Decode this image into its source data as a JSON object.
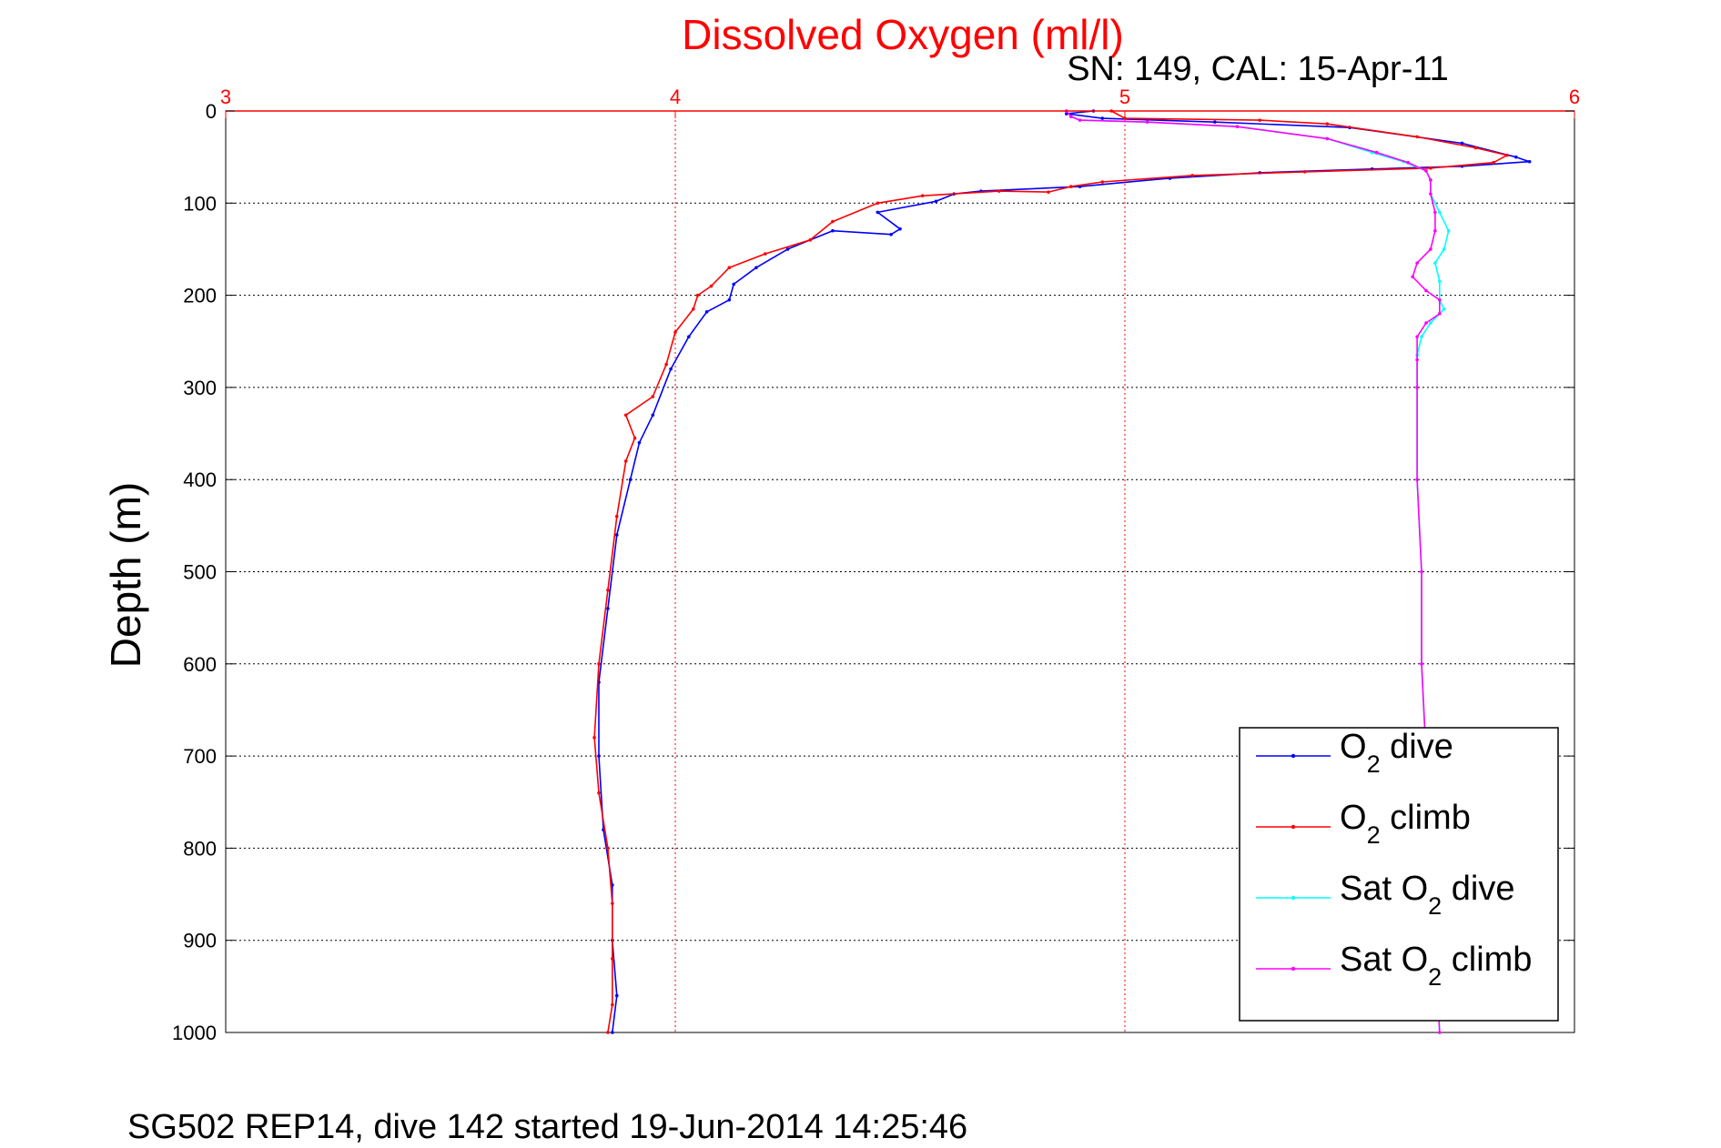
{
  "chart_data": {
    "type": "line",
    "title": "Dissolved Oxygen (ml/l)",
    "subtitle": "SN: 149, CAL: 15-Apr-11",
    "footer": "SG502 REP14, dive 142 started 19-Jun-2014 14:25:46",
    "xlabel": "",
    "ylabel": "Depth (m)",
    "xlim": [
      3,
      6
    ],
    "ylim": [
      0,
      1000
    ],
    "y_reversed": true,
    "x_axis_position": "top",
    "x_ticks": [
      "3",
      "4",
      "5",
      "6"
    ],
    "y_ticks": [
      "0",
      "100",
      "200",
      "300",
      "400",
      "500",
      "600",
      "700",
      "800",
      "900",
      "1000"
    ],
    "grid": true,
    "legend_position": "bottom-right",
    "colors": {
      "title": "#ff0000",
      "x_axis": "#ff0000",
      "grid_x": "#ff0000",
      "grid_y": "#000000"
    },
    "series": [
      {
        "name": "O2 dive",
        "legend_main": "O",
        "legend_sub": "2",
        "legend_rest": " dive",
        "color": "#0000ff",
        "points": [
          [
            4.93,
            0
          ],
          [
            4.87,
            3
          ],
          [
            4.95,
            8
          ],
          [
            5.2,
            12
          ],
          [
            5.5,
            18
          ],
          [
            5.75,
            35
          ],
          [
            5.87,
            50
          ],
          [
            5.9,
            55
          ],
          [
            5.75,
            60
          ],
          [
            5.55,
            63
          ],
          [
            5.3,
            67
          ],
          [
            5.1,
            73
          ],
          [
            4.9,
            82
          ],
          [
            4.68,
            87
          ],
          [
            4.62,
            90
          ],
          [
            4.58,
            98
          ],
          [
            4.45,
            110
          ],
          [
            4.5,
            128
          ],
          [
            4.48,
            134
          ],
          [
            4.35,
            130
          ],
          [
            4.25,
            150
          ],
          [
            4.18,
            170
          ],
          [
            4.13,
            188
          ],
          [
            4.12,
            205
          ],
          [
            4.07,
            218
          ],
          [
            4.03,
            245
          ],
          [
            3.99,
            280
          ],
          [
            3.95,
            330
          ],
          [
            3.92,
            360
          ],
          [
            3.9,
            400
          ],
          [
            3.87,
            460
          ],
          [
            3.85,
            540
          ],
          [
            3.83,
            620
          ],
          [
            3.83,
            700
          ],
          [
            3.84,
            780
          ],
          [
            3.86,
            840
          ],
          [
            3.86,
            900
          ],
          [
            3.87,
            960
          ],
          [
            3.86,
            1000
          ]
        ]
      },
      {
        "name": "O2 climb",
        "legend_main": "O",
        "legend_sub": "2",
        "legend_rest": " climb",
        "color": "#ff0000",
        "points": [
          [
            4.97,
            0
          ],
          [
            5.0,
            8
          ],
          [
            5.3,
            10
          ],
          [
            5.45,
            14
          ],
          [
            5.65,
            28
          ],
          [
            5.78,
            40
          ],
          [
            5.85,
            48
          ],
          [
            5.82,
            56
          ],
          [
            5.68,
            62
          ],
          [
            5.4,
            66
          ],
          [
            5.15,
            70
          ],
          [
            4.95,
            77
          ],
          [
            4.88,
            82
          ],
          [
            4.83,
            88
          ],
          [
            4.72,
            87
          ],
          [
            4.55,
            92
          ],
          [
            4.45,
            100
          ],
          [
            4.35,
            120
          ],
          [
            4.3,
            140
          ],
          [
            4.2,
            155
          ],
          [
            4.12,
            170
          ],
          [
            4.08,
            190
          ],
          [
            4.05,
            200
          ],
          [
            4.04,
            215
          ],
          [
            4.0,
            240
          ],
          [
            3.98,
            275
          ],
          [
            3.95,
            310
          ],
          [
            3.89,
            330
          ],
          [
            3.91,
            355
          ],
          [
            3.89,
            380
          ],
          [
            3.87,
            440
          ],
          [
            3.85,
            520
          ],
          [
            3.83,
            600
          ],
          [
            3.82,
            680
          ],
          [
            3.83,
            740
          ],
          [
            3.85,
            800
          ],
          [
            3.86,
            860
          ],
          [
            3.86,
            920
          ],
          [
            3.86,
            970
          ],
          [
            3.85,
            1000
          ]
        ]
      },
      {
        "name": "Sat O2 dive",
        "legend_main": "Sat O",
        "legend_sub": "2",
        "legend_rest": " dive",
        "color": "#00ffff",
        "points": [
          [
            4.87,
            0
          ],
          [
            4.88,
            6
          ],
          [
            4.9,
            10
          ],
          [
            5.05,
            12
          ],
          [
            5.25,
            17
          ],
          [
            5.45,
            30
          ],
          [
            5.55,
            45
          ],
          [
            5.62,
            55
          ],
          [
            5.67,
            65
          ],
          [
            5.68,
            75
          ],
          [
            5.68,
            90
          ],
          [
            5.7,
            110
          ],
          [
            5.72,
            130
          ],
          [
            5.71,
            150
          ],
          [
            5.69,
            165
          ],
          [
            5.7,
            185
          ],
          [
            5.7,
            205
          ],
          [
            5.71,
            215
          ],
          [
            5.68,
            230
          ],
          [
            5.66,
            245
          ],
          [
            5.65,
            265
          ],
          [
            5.65,
            300
          ],
          [
            5.65,
            400
          ],
          [
            5.66,
            500
          ],
          [
            5.66,
            600
          ],
          [
            5.67,
            700
          ],
          [
            5.68,
            800
          ],
          [
            5.69,
            900
          ],
          [
            5.7,
            1000
          ]
        ]
      },
      {
        "name": "Sat O2 climb",
        "legend_main": "Sat O",
        "legend_sub": "2",
        "legend_rest": " climb",
        "color": "#ff00ff",
        "points": [
          [
            4.87,
            0
          ],
          [
            4.88,
            6
          ],
          [
            4.9,
            10
          ],
          [
            5.05,
            12
          ],
          [
            5.25,
            17
          ],
          [
            5.45,
            30
          ],
          [
            5.56,
            45
          ],
          [
            5.63,
            56
          ],
          [
            5.67,
            65
          ],
          [
            5.68,
            75
          ],
          [
            5.68,
            90
          ],
          [
            5.69,
            110
          ],
          [
            5.69,
            130
          ],
          [
            5.68,
            150
          ],
          [
            5.65,
            165
          ],
          [
            5.64,
            180
          ],
          [
            5.67,
            195
          ],
          [
            5.7,
            205
          ],
          [
            5.7,
            220
          ],
          [
            5.67,
            230
          ],
          [
            5.65,
            245
          ],
          [
            5.65,
            270
          ],
          [
            5.65,
            300
          ],
          [
            5.65,
            400
          ],
          [
            5.66,
            500
          ],
          [
            5.66,
            600
          ],
          [
            5.67,
            700
          ],
          [
            5.68,
            800
          ],
          [
            5.69,
            900
          ],
          [
            5.7,
            1000
          ]
        ]
      }
    ]
  }
}
